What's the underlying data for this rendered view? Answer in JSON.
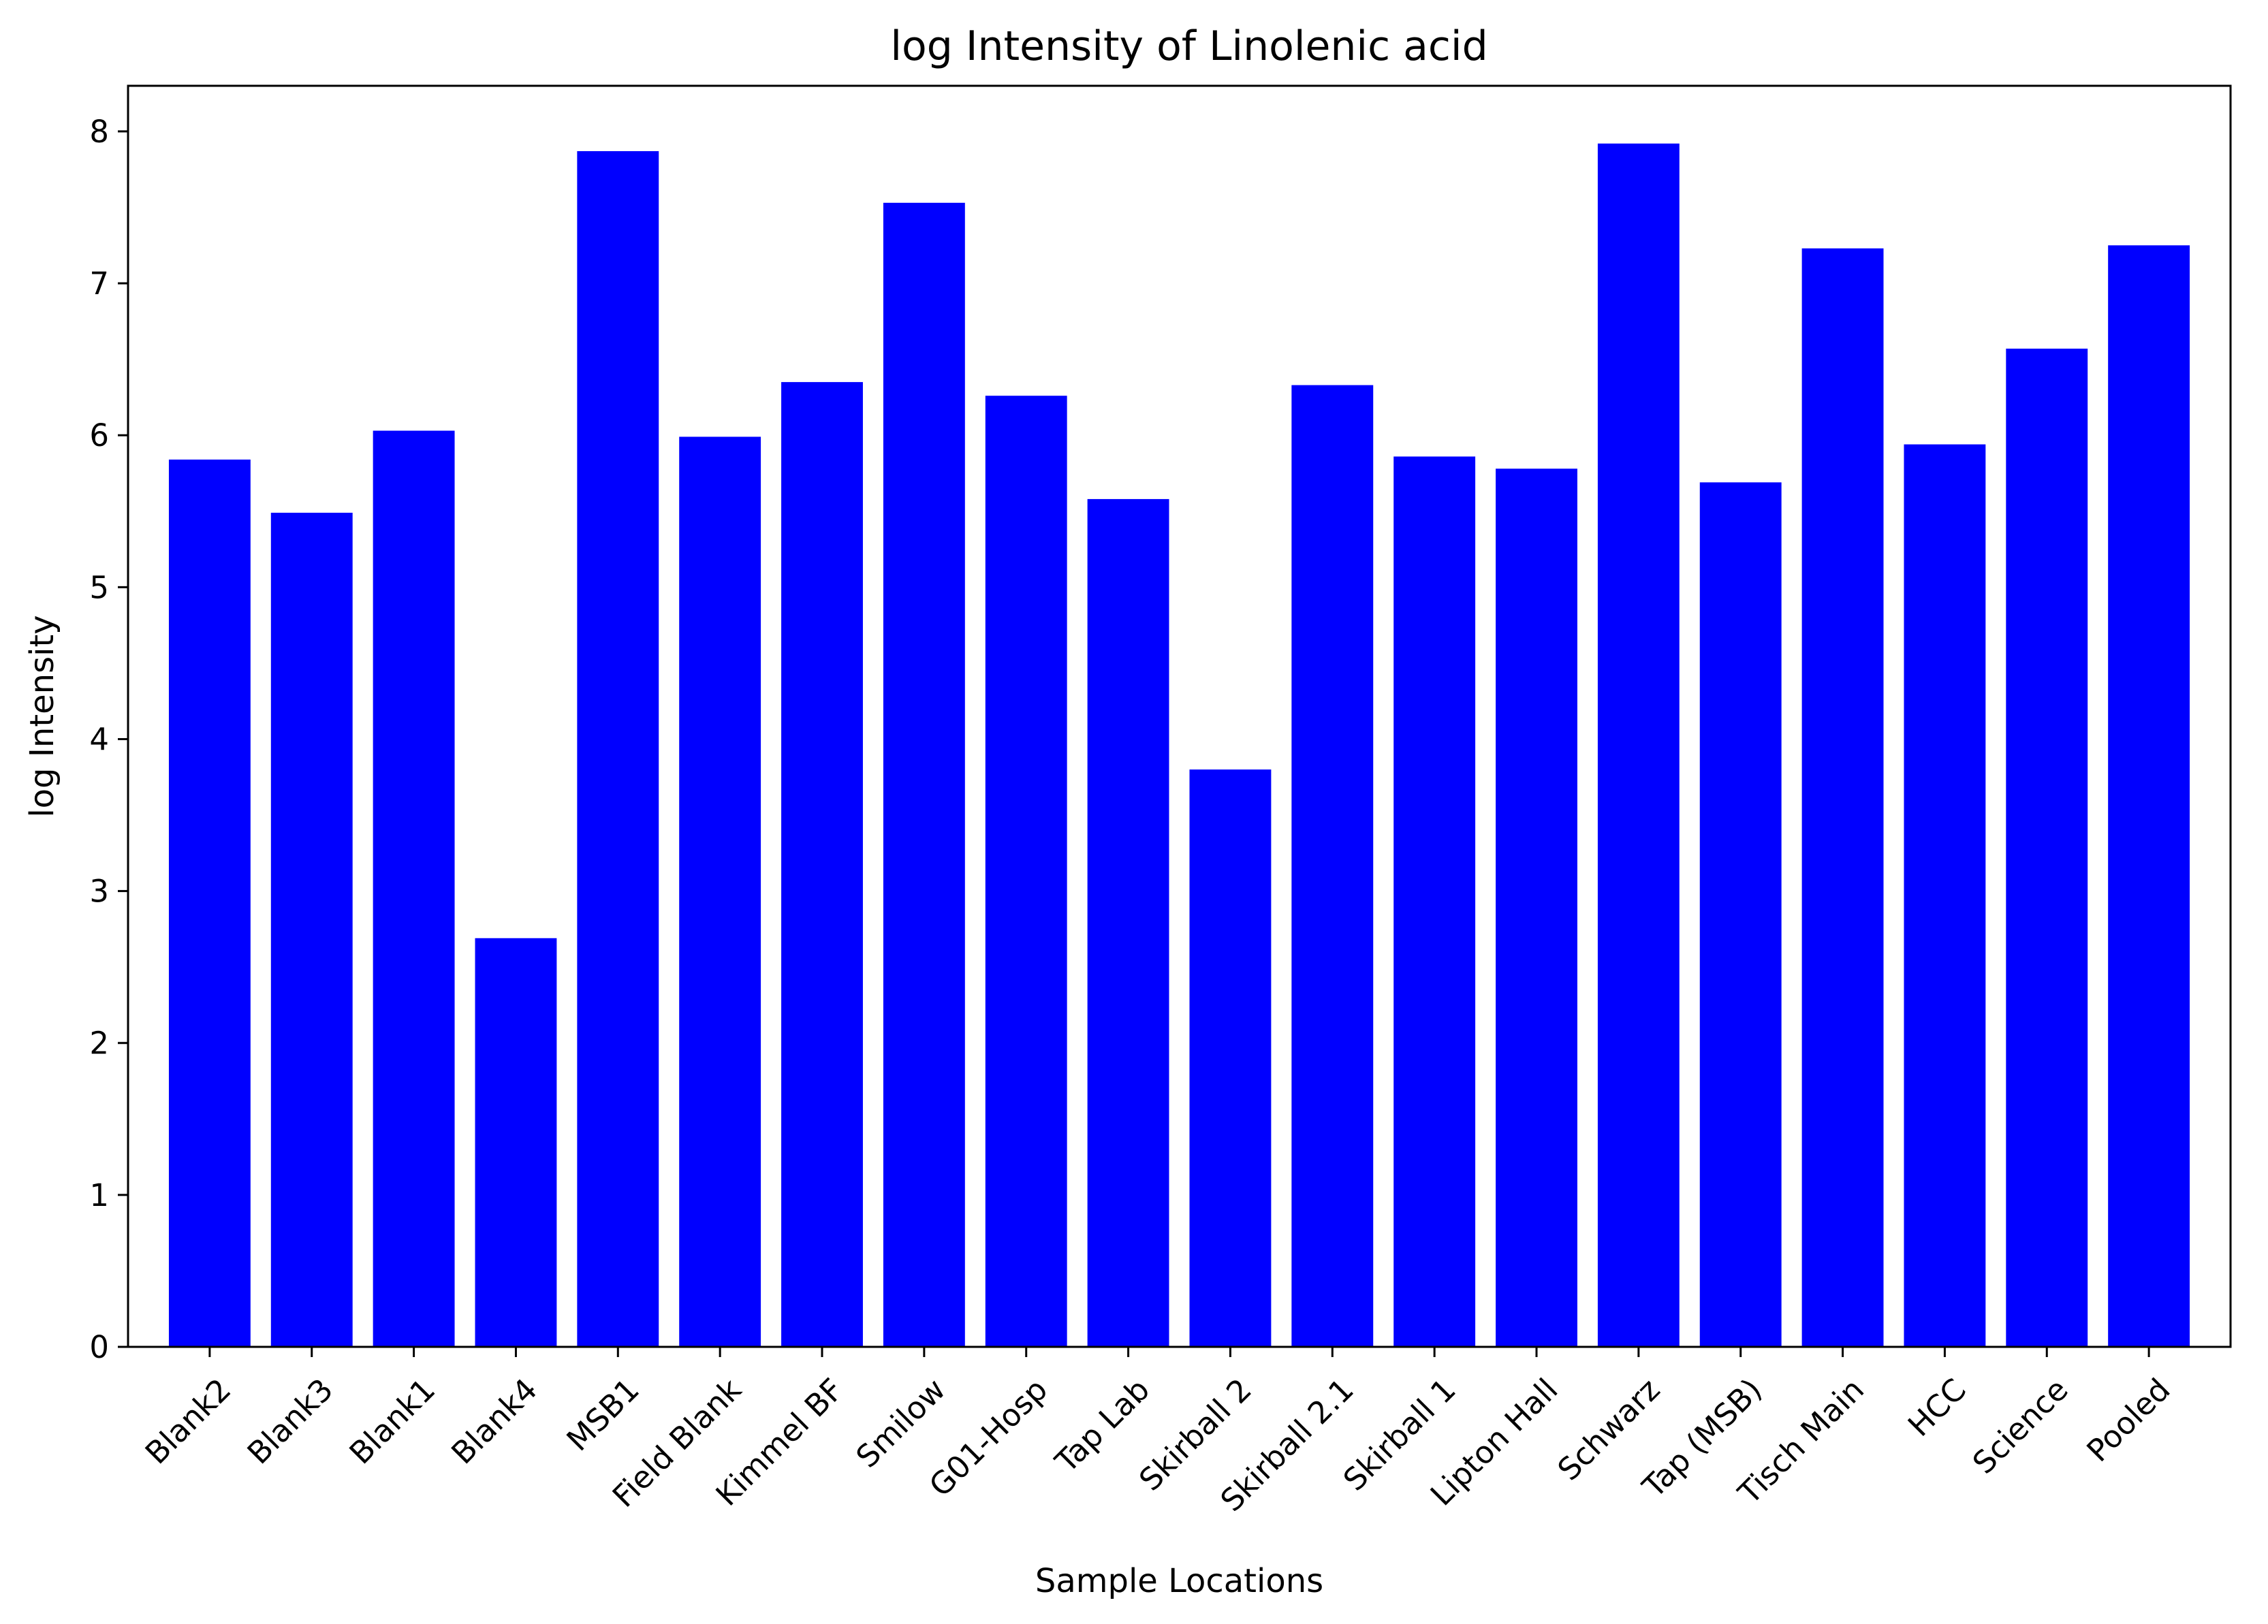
{
  "chart_data": {
    "type": "bar",
    "title": "log Intensity of Linolenic acid",
    "xlabel": "Sample Locations",
    "ylabel": "log Intensity",
    "categories": [
      "Blank2",
      "Blank3",
      "Blank1",
      "Blank4",
      "MSB1",
      "Field Blank",
      "Kimmel BF",
      "Smilow",
      "G01-Hosp",
      "Tap Lab",
      "Skirball 2",
      "Skirball 2.1",
      "Skirball 1",
      "Lipton Hall",
      "Schwarz",
      "Tap (MSB)",
      "Tisch Main",
      "HCC",
      "Science",
      "Pooled"
    ],
    "values": [
      5.84,
      5.49,
      6.03,
      2.69,
      7.87,
      5.99,
      6.35,
      7.53,
      6.26,
      5.58,
      3.8,
      6.33,
      5.86,
      5.78,
      7.92,
      5.69,
      7.23,
      5.94,
      6.57,
      7.25
    ],
    "yticks": [
      0,
      1,
      2,
      3,
      4,
      5,
      6,
      7,
      8
    ],
    "ylim": [
      0,
      8.3
    ],
    "grid": false,
    "colors": {
      "bar": "#0000ff",
      "axis": "#000000",
      "background": "#ffffff"
    }
  }
}
